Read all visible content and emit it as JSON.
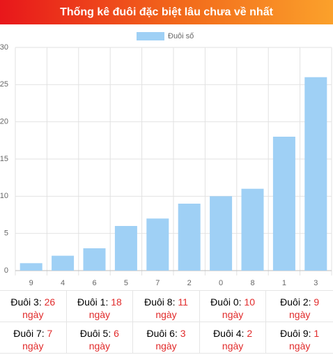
{
  "chart_data": {
    "type": "bar",
    "title": "Thống kê đuôi đặc biệt lâu chưa về nhất",
    "categories": [
      "9",
      "4",
      "6",
      "5",
      "7",
      "2",
      "0",
      "8",
      "1",
      "3"
    ],
    "series": [
      {
        "name": "Đuôi số",
        "color": "#9fd0f5",
        "values": [
          1,
          2,
          3,
          6,
          7,
          9,
          10,
          11,
          18,
          26
        ]
      }
    ],
    "ylim": [
      0,
      30
    ],
    "yticks": [
      0,
      5,
      10,
      15,
      20,
      25,
      30
    ],
    "grid": true,
    "legend": "top"
  },
  "table": {
    "rows": [
      [
        {
          "label": "Đuôi 3:",
          "value": "26",
          "unit": "ngày"
        },
        {
          "label": "Đuôi 1:",
          "value": "18",
          "unit": "ngày"
        },
        {
          "label": "Đuôi 8:",
          "value": "11",
          "unit": "ngày"
        },
        {
          "label": "Đuôi 0:",
          "value": "10",
          "unit": "ngày"
        },
        {
          "label": "Đuôi 2:",
          "value": "9",
          "unit": "ngày"
        }
      ],
      [
        {
          "label": "Đuôi 7:",
          "value": "7",
          "unit": "ngày"
        },
        {
          "label": "Đuôi 5:",
          "value": "6",
          "unit": "ngày"
        },
        {
          "label": "Đuôi 6:",
          "value": "3",
          "unit": "ngày"
        },
        {
          "label": "Đuôi 4:",
          "value": "2",
          "unit": "ngày"
        },
        {
          "label": "Đuôi 9:",
          "value": "1",
          "unit": "ngày"
        }
      ]
    ]
  }
}
